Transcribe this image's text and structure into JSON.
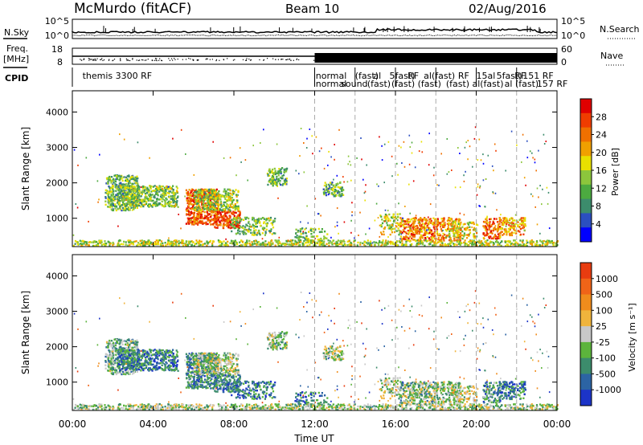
{
  "header": {
    "station": "McMurdo (fitACF)",
    "beam": "Beam 10",
    "date": "02/Aug/2016"
  },
  "strips": {
    "nsky_label": "N.Sky",
    "nsearch_label": "N.Search",
    "freq_label_1": "Freq.",
    "freq_label_2": "[MHz]",
    "nave_label": "Nave",
    "cpid_label": "CPID",
    "noise_left_ticks": [
      "10^5",
      "10^0"
    ],
    "noise_right_ticks": [
      "10^5",
      "10^0"
    ],
    "freq_ticks": [
      "18",
      "8"
    ],
    "nave_ticks": [
      "60",
      "0"
    ],
    "cpid_upper": [
      {
        "t": 0.5,
        "text": "themis 3300 RF"
      },
      {
        "t": 12.05,
        "text": "normal"
      },
      {
        "t": 14.0,
        "text": "(fast)"
      },
      {
        "t": 14.9,
        "text": "al"
      },
      {
        "t": 15.7,
        "text": "5fast)"
      },
      {
        "t": 16.6,
        "text": "RF"
      },
      {
        "t": 17.4,
        "text": "al(fast)"
      },
      {
        "t": 19.1,
        "text": "RF"
      },
      {
        "t": 20.0,
        "text": "15al"
      },
      {
        "t": 21.0,
        "text": "5fast)"
      },
      {
        "t": 21.9,
        "text": "RF"
      },
      {
        "t": 22.3,
        "text": "151 RF"
      }
    ],
    "cpid_lower": [
      {
        "t": 12.05,
        "text": "normal"
      },
      {
        "t": 13.3,
        "text": "sound"
      },
      {
        "t": 14.6,
        "text": "(fast)"
      },
      {
        "t": 15.8,
        "text": "(fast)"
      },
      {
        "t": 17.1,
        "text": "(fast)"
      },
      {
        "t": 18.5,
        "text": "(fast)"
      },
      {
        "t": 19.8,
        "text": "al(fast)"
      },
      {
        "t": 21.4,
        "text": "al (fast)"
      },
      {
        "t": 23.0,
        "text": "157 RF"
      }
    ]
  },
  "chart_data": [
    {
      "type": "heatmap",
      "name": "power",
      "xlabel": "Time UT",
      "ylabel": "Slant Range [km]",
      "xlim": [
        0,
        24
      ],
      "ylim": [
        200,
        4600
      ],
      "yticks": [
        "1000",
        "2000",
        "3000",
        "4000"
      ],
      "xticks": [
        "00:00",
        "04:00",
        "08:00",
        "12:00",
        "16:00",
        "20:00",
        "00:00"
      ],
      "colorbar_label": "Power [dB]",
      "colorbar_ticks": [
        "4",
        "8",
        "12",
        "16",
        "20",
        "24",
        "28"
      ],
      "colorbar_colors": [
        "#0000ff",
        "#2b4fc0",
        "#3c8c6c",
        "#4caa40",
        "#8cc63c",
        "#e8e000",
        "#f0a000",
        "#f07000",
        "#f03c00",
        "#e00000"
      ],
      "dashed_times": [
        12,
        14,
        16,
        18,
        20,
        22
      ]
    },
    {
      "type": "heatmap",
      "name": "velocity",
      "xlabel": "Time UT",
      "ylabel": "Slant Range [km]",
      "xlim": [
        0,
        24
      ],
      "ylim": [
        200,
        4600
      ],
      "yticks": [
        "1000",
        "2000",
        "3000",
        "4000"
      ],
      "xticks": [
        "00:00",
        "04:00",
        "08:00",
        "12:00",
        "16:00",
        "20:00",
        "00:00"
      ],
      "colorbar_label": "Velocity [m s⁻¹]",
      "colorbar_ticks": [
        "1000",
        "500",
        "100",
        "25",
        "-25",
        "-100",
        "-500",
        "-1000"
      ],
      "colorbar_colors": [
        "#1c34c8",
        "#2c64a4",
        "#3c8c6c",
        "#5cb43c",
        "#c8c8c8",
        "#f0b43c",
        "#f08c1c",
        "#f06418",
        "#e83c10"
      ],
      "dashed_times": [
        12,
        14,
        16,
        18,
        20,
        22
      ]
    }
  ]
}
